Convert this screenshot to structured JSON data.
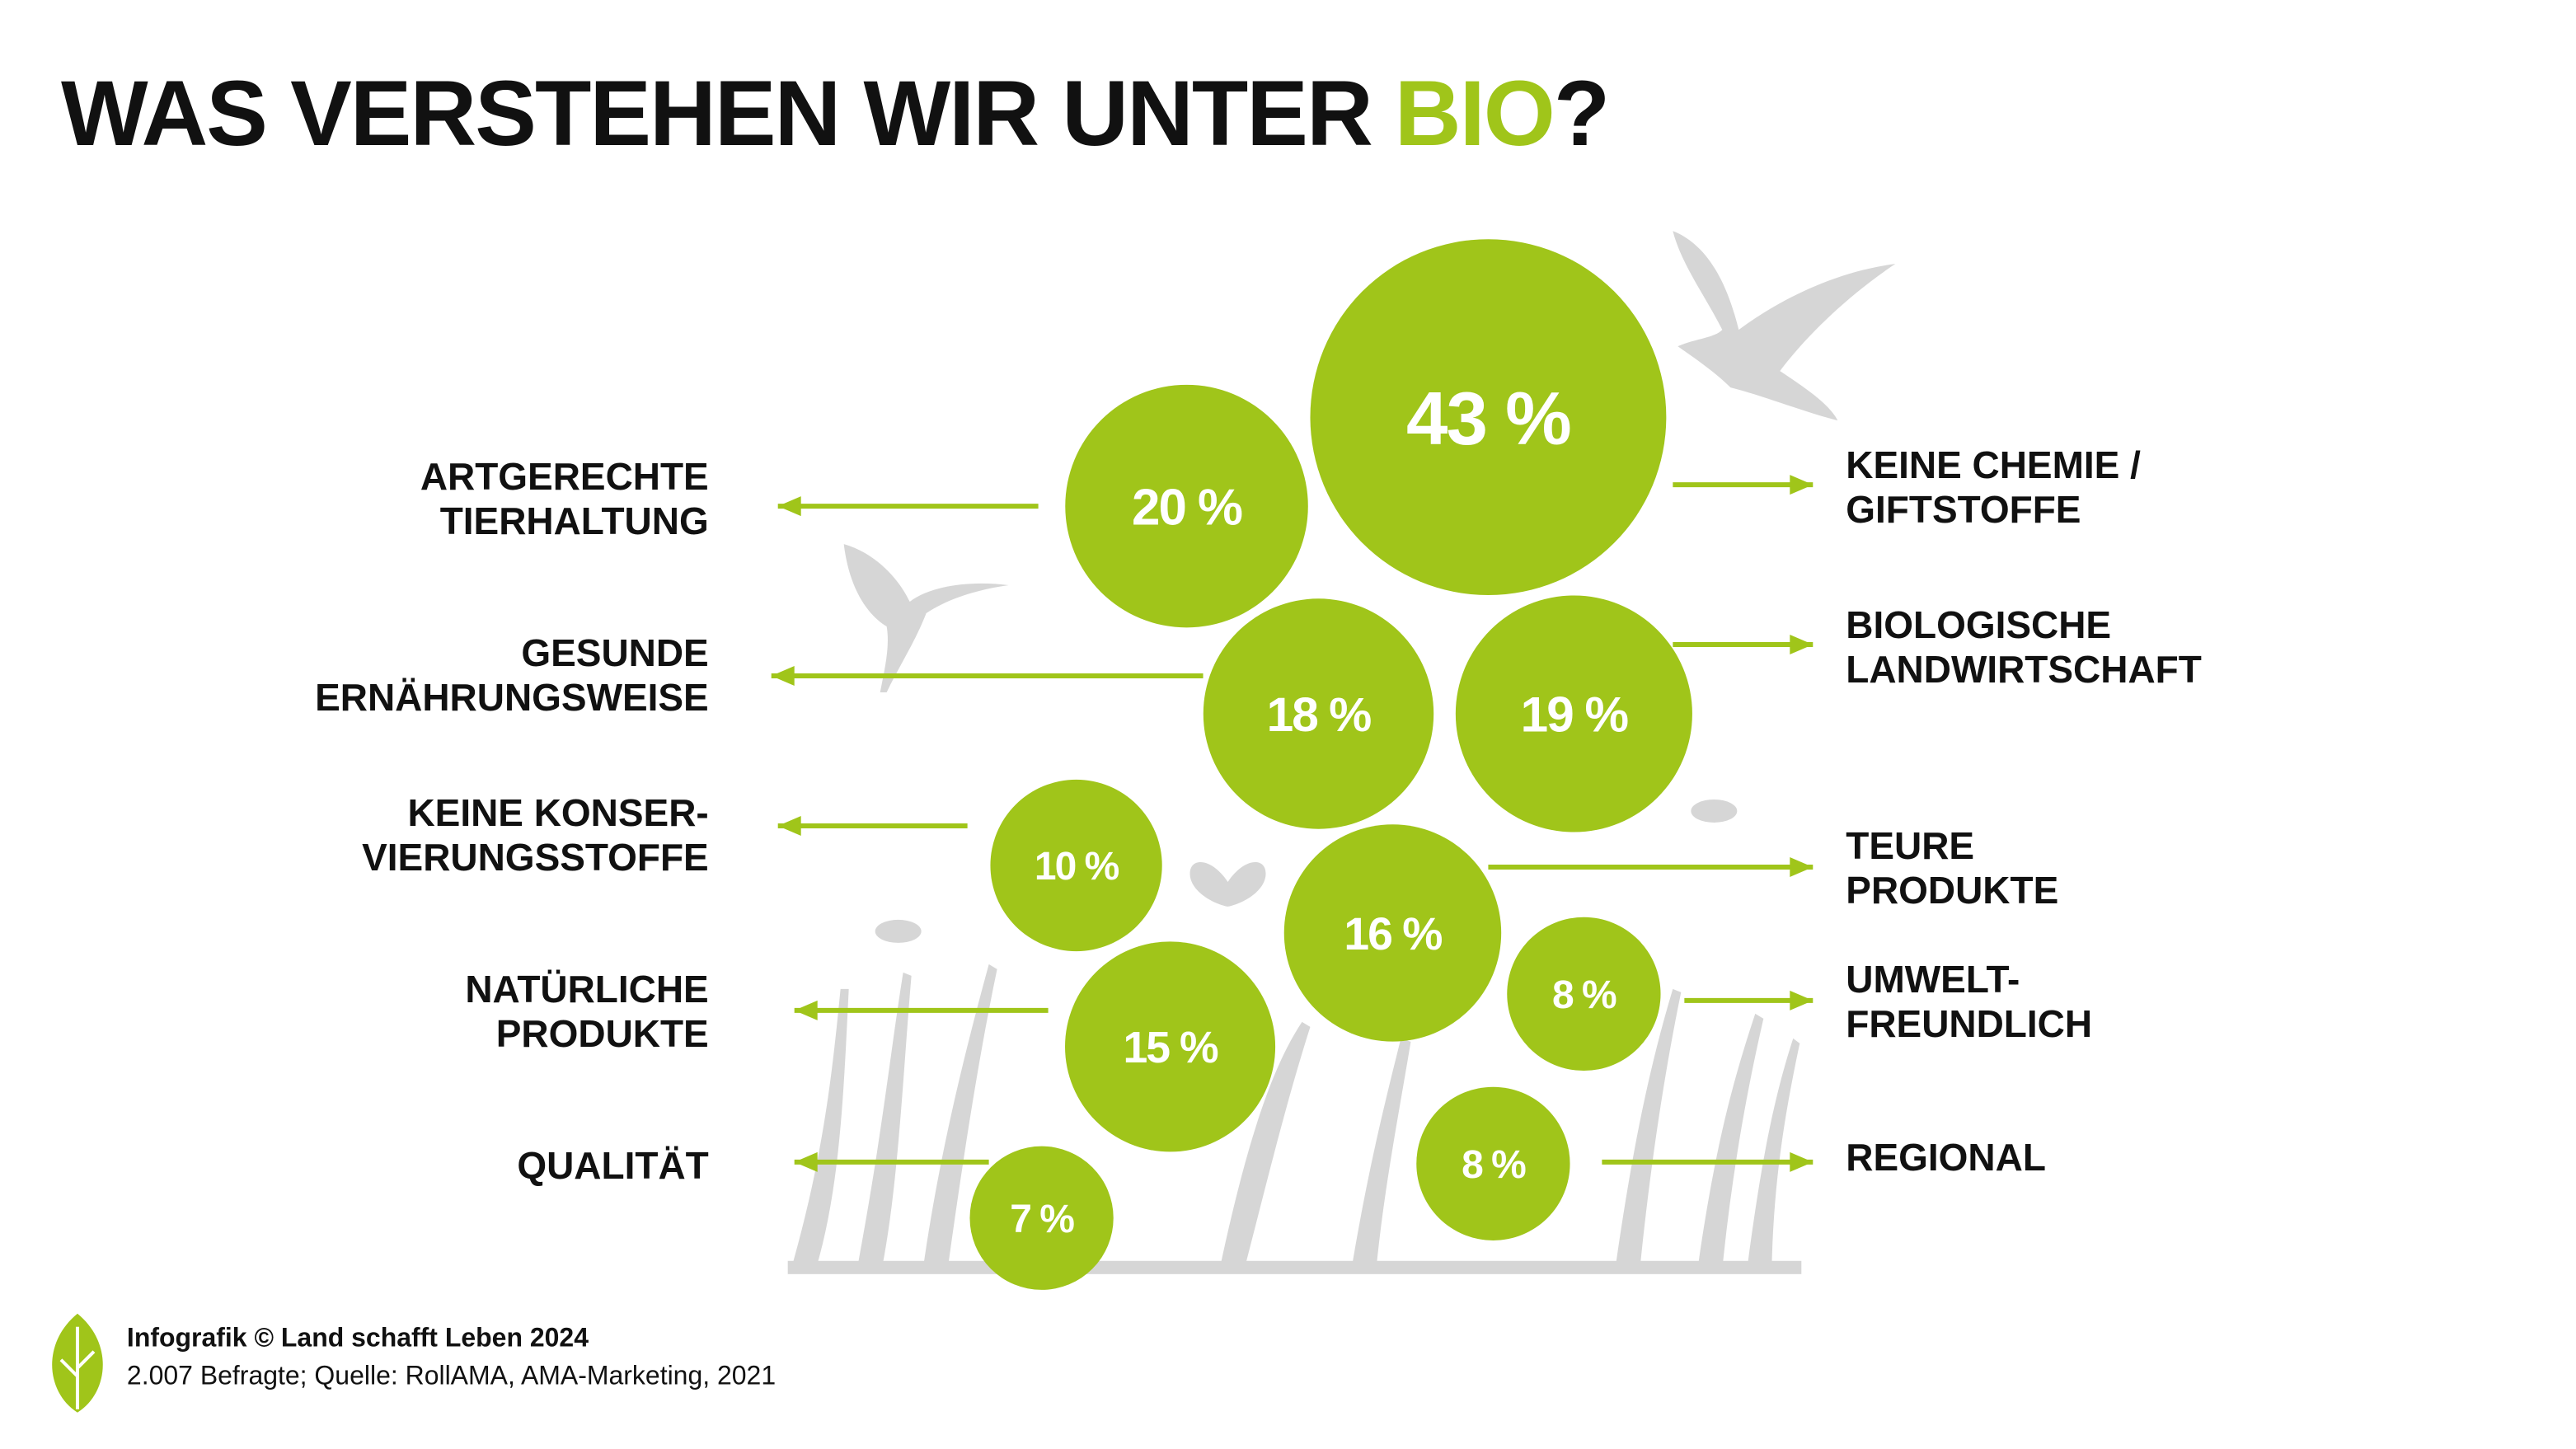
{
  "chart_data": {
    "type": "bubble",
    "title": {
      "text": "WAS VERSTEHEN WIR UNTER",
      "highlight": "BIO",
      "end": "?"
    },
    "color": "#a0c51a",
    "categories": [
      [
        "ARTGERECHTE",
        "TIERHALTUNG"
      ],
      [
        "KEINE CHEMIE /",
        "GIFTSTOFFE"
      ],
      [
        "GESUNDE",
        "ERNÄHRUNGSWEISE"
      ],
      [
        "BIOLOGISCHE",
        "LANDWIRTSCHAFT"
      ],
      [
        "KEINE KONSER-",
        "VIERUNGSSTOFFE"
      ],
      [
        "TEURE",
        "PRODUKTE"
      ],
      [
        "UMWELT-",
        "FREUNDLICH"
      ],
      [
        "NATÜRLICHE",
        "PRODUKTE"
      ],
      [
        "REGIONAL"
      ],
      [
        "QUALITÄT"
      ]
    ],
    "values": [
      20,
      43,
      18,
      19,
      10,
      16,
      8,
      15,
      8,
      7
    ],
    "value_labels": [
      "20 %",
      "43 %",
      "18 %",
      "19 %",
      "10 %",
      "16 %",
      "8 %",
      "15 %",
      "8 %",
      "7 %"
    ]
  },
  "footer": {
    "credit": "Infografik © Land schafft Leben 2024",
    "source": "2.007 Befragte; Quelle: RollAMA, AMA-Marketing, 2021"
  }
}
